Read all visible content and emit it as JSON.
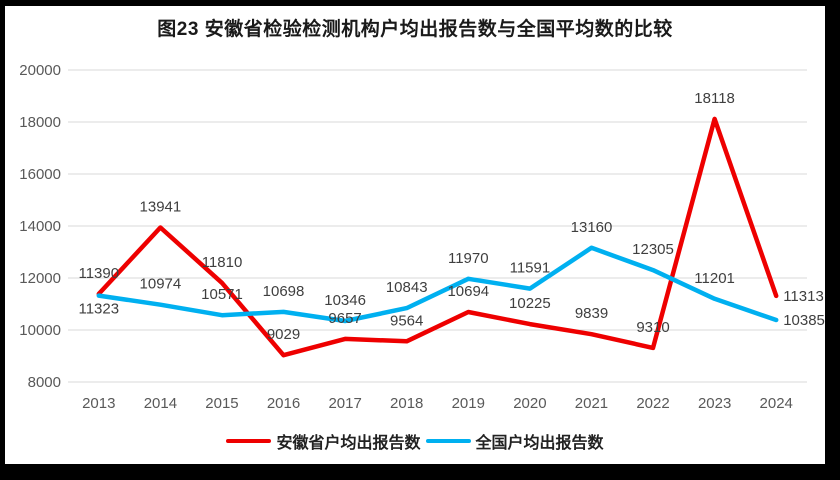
{
  "page": {
    "border_color": "#000000",
    "background": "#ffffff"
  },
  "chart_data": {
    "type": "line",
    "title": "图23 安徽省检验检测机构户均出报告数与全国平均数的比较",
    "categories": [
      "2013",
      "2014",
      "2015",
      "2016",
      "2017",
      "2018",
      "2019",
      "2020",
      "2021",
      "2022",
      "2023",
      "2024"
    ],
    "series": [
      {
        "name": "安徽省户均出报告数",
        "color": "#ee0000",
        "values": [
          11390,
          13941,
          11810,
          9029,
          9657,
          9564,
          10694,
          10225,
          9839,
          9310,
          18118,
          11313
        ],
        "label_placement": [
          "above",
          "above",
          "above",
          "above",
          "above",
          "above",
          "above",
          "above",
          "above",
          "above",
          "above",
          "right"
        ]
      },
      {
        "name": "全国户均出报告数",
        "color": "#00b0f0",
        "values": [
          11323,
          10974,
          10571,
          10698,
          10346,
          10843,
          11970,
          11591,
          13160,
          12305,
          11201,
          10385
        ],
        "label_placement": [
          "below",
          "above",
          "above",
          "above",
          "above",
          "above",
          "above",
          "above",
          "above",
          "above",
          "above",
          "right"
        ]
      }
    ],
    "xlabel": "",
    "ylabel": "",
    "ylim": [
      8000,
      20000
    ],
    "yticks": [
      8000,
      10000,
      12000,
      14000,
      16000,
      18000,
      20000
    ],
    "grid": true,
    "gridline_color": "#d9d9d9",
    "axis_label_color": "#595959",
    "data_label_color": "#3f3f3f",
    "legend_position": "bottom",
    "data_labels": true
  }
}
